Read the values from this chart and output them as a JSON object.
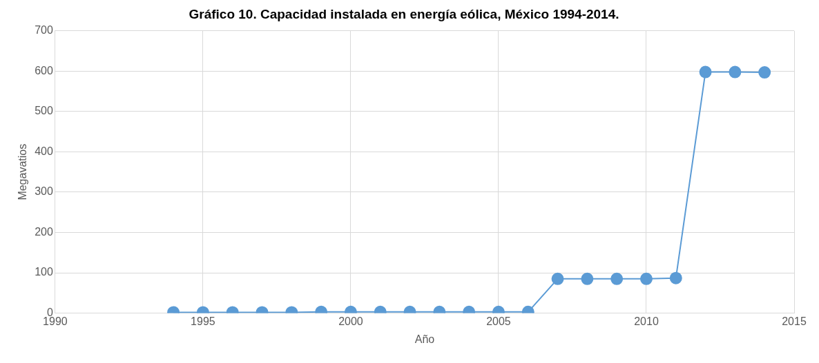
{
  "chart_data": {
    "type": "line",
    "title": "Gráfico 10. Capacidad instalada en energía eólica, México 1994-2014.",
    "xlabel": "Año",
    "ylabel": "Megavatios",
    "x": [
      1994,
      1995,
      1996,
      1997,
      1998,
      1999,
      2000,
      2001,
      2002,
      2003,
      2004,
      2005,
      2006,
      2007,
      2008,
      2009,
      2010,
      2011,
      2012,
      2013,
      2014
    ],
    "series": [
      {
        "color": "#5b9bd5",
        "values": [
          2,
          2,
          2,
          2,
          2,
          3,
          3,
          3,
          3,
          3,
          3,
          3,
          3,
          85,
          85,
          85,
          85,
          87,
          598,
          598,
          597
        ]
      }
    ],
    "xlim": [
      1990,
      2015
    ],
    "xticks": [
      1990,
      1995,
      2000,
      2005,
      2010,
      2015
    ],
    "ylim": [
      0,
      700
    ],
    "yticks": [
      0,
      100,
      200,
      300,
      400,
      500,
      600,
      700
    ],
    "grid": true,
    "legend": false,
    "marker": "circle",
    "line_style": "solid"
  }
}
